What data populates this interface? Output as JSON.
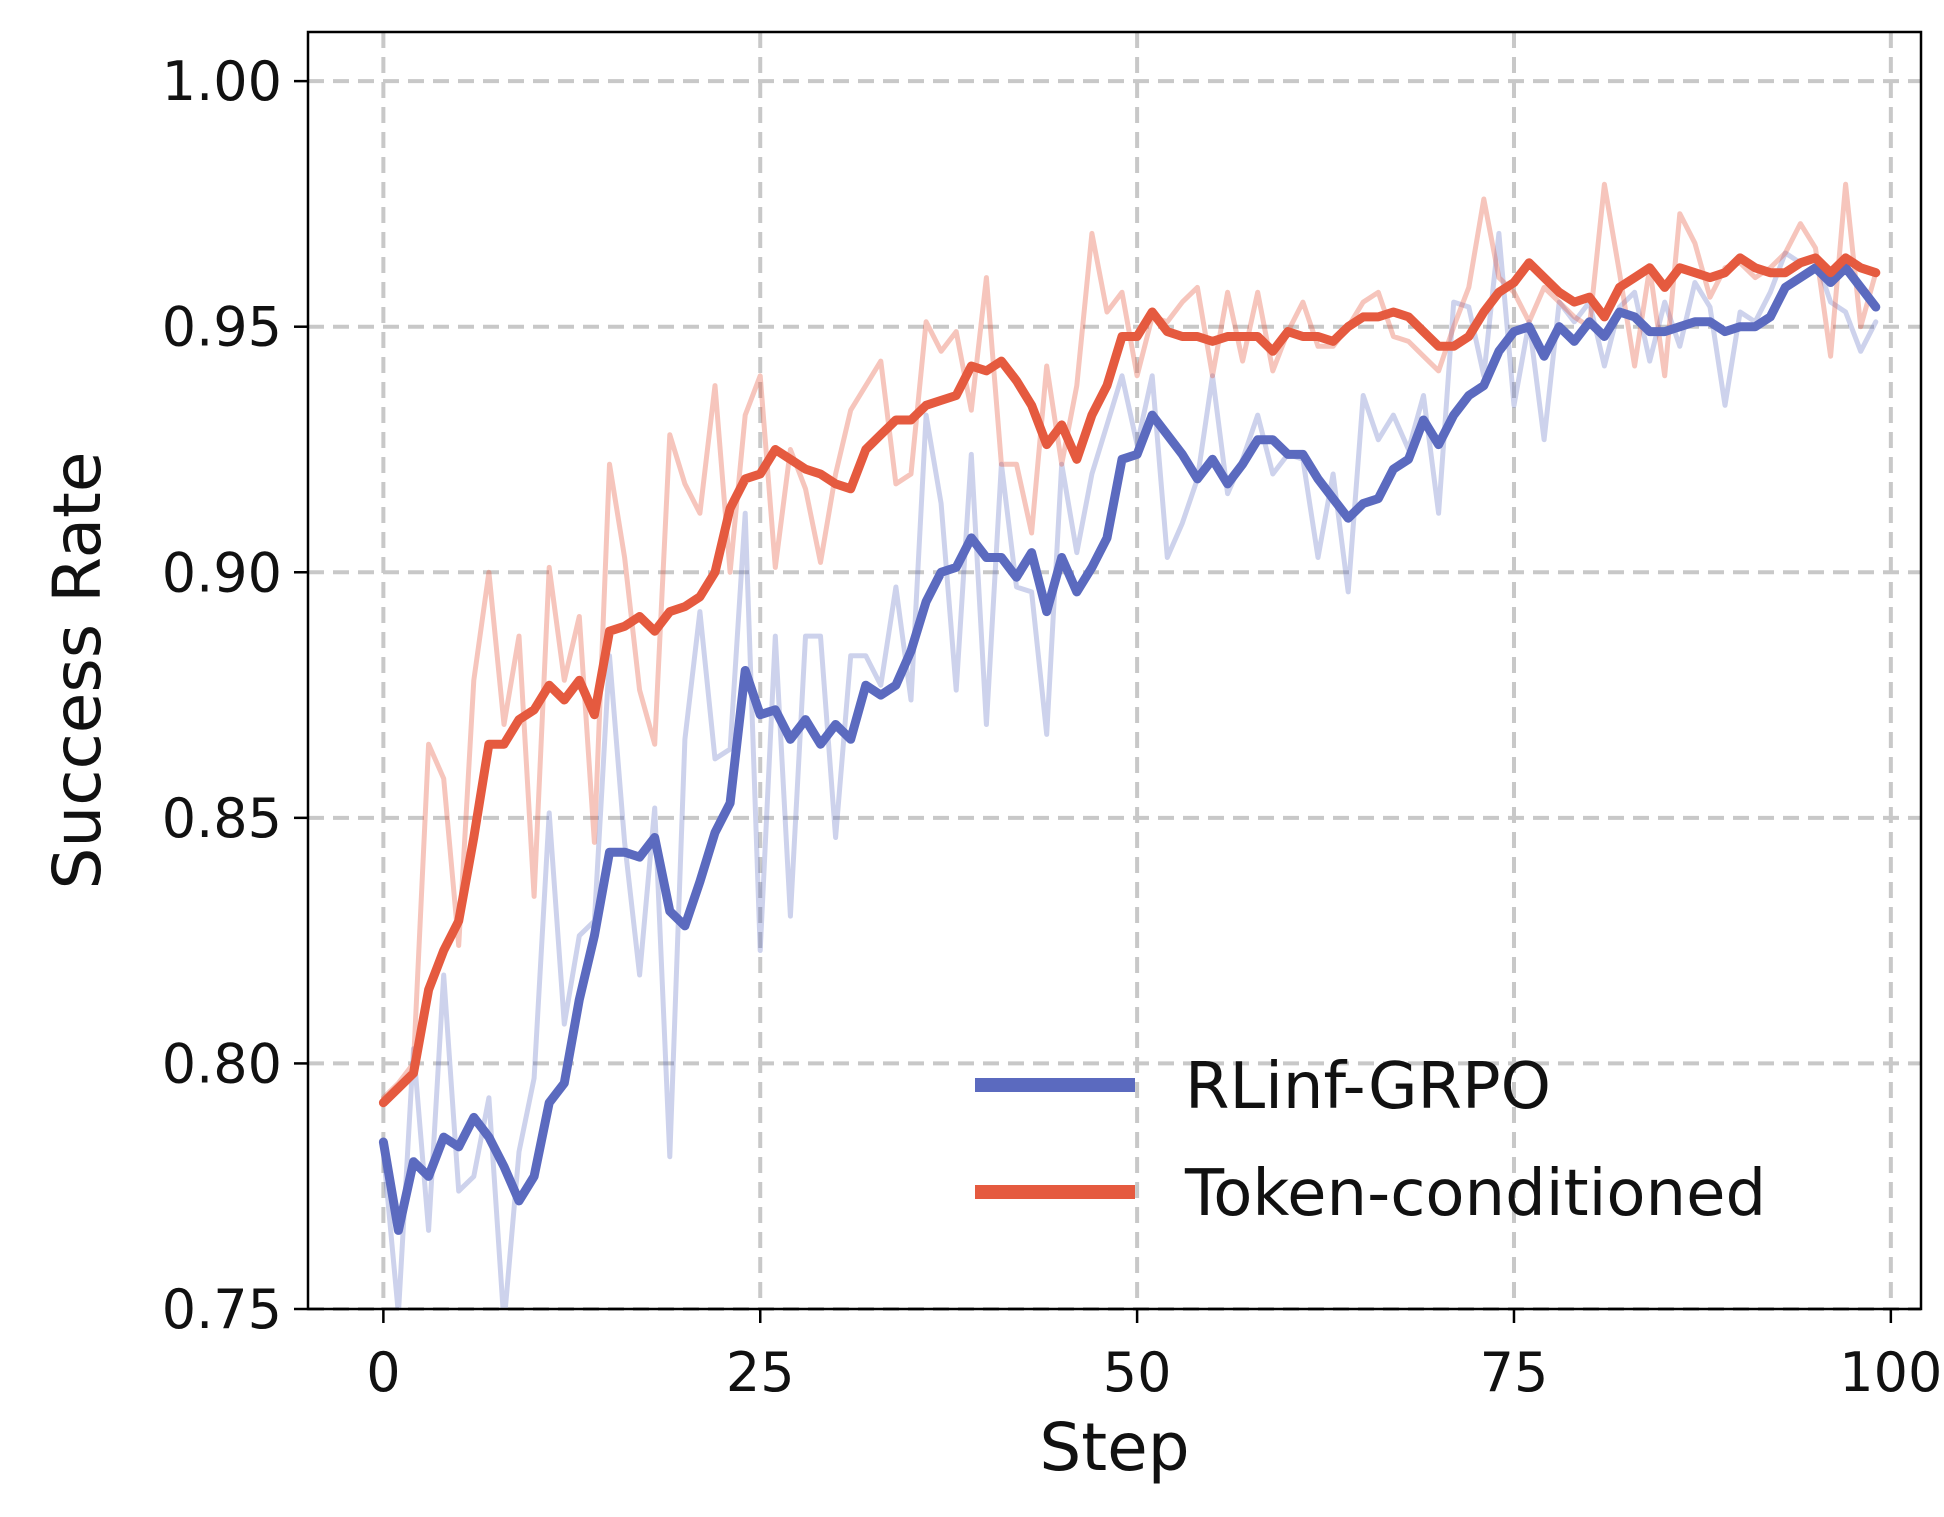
{
  "chart_data": {
    "type": "line",
    "xlabel": "Step",
    "ylabel": "Success Rate",
    "xlim": [
      -5,
      102
    ],
    "ylim": [
      0.75,
      1.01
    ],
    "xticks": [
      0,
      25,
      50,
      75,
      100
    ],
    "yticks": [
      0.75,
      0.8,
      0.85,
      0.9,
      0.95,
      1.0
    ],
    "xtick_labels": [
      "0",
      "25",
      "50",
      "75",
      "100"
    ],
    "ytick_labels": [
      "0.75",
      "0.80",
      "0.85",
      "0.90",
      "0.95",
      "1.00"
    ],
    "grid": true,
    "legend_position": "lower-right",
    "series": [
      {
        "name": "RLinf-GRPO",
        "color": "#5B6ABF",
        "raw_alpha": 0.3,
        "smoothed": [
          0.784,
          0.766,
          0.78,
          0.777,
          0.785,
          0.783,
          0.789,
          0.785,
          0.779,
          0.772,
          0.777,
          0.792,
          0.796,
          0.813,
          0.826,
          0.843,
          0.843,
          0.842,
          0.846,
          0.831,
          0.828,
          0.837,
          0.847,
          0.853,
          0.88,
          0.871,
          0.872,
          0.866,
          0.87,
          0.865,
          0.869,
          0.866,
          0.877,
          0.875,
          0.877,
          0.884,
          0.894,
          0.9,
          0.901,
          0.907,
          0.903,
          0.903,
          0.899,
          0.904,
          0.892,
          0.903,
          0.896,
          0.901,
          0.907,
          0.923,
          0.924,
          0.932,
          0.928,
          0.924,
          0.919,
          0.923,
          0.918,
          0.922,
          0.927,
          0.927,
          0.924,
          0.924,
          0.919,
          0.915,
          0.911,
          0.914,
          0.915,
          0.921,
          0.923,
          0.931,
          0.926,
          0.932,
          0.936,
          0.938,
          0.945,
          0.949,
          0.95,
          0.944,
          0.95,
          0.947,
          0.951,
          0.948,
          0.953,
          0.952,
          0.949,
          0.949,
          0.95,
          0.951,
          0.951,
          0.949,
          0.95,
          0.95,
          0.952,
          0.958,
          0.96,
          0.962,
          0.959,
          0.962,
          0.958,
          0.954
        ],
        "raw": [
          0.782,
          0.749,
          0.803,
          0.766,
          0.818,
          0.774,
          0.777,
          0.793,
          0.747,
          0.782,
          0.797,
          0.851,
          0.808,
          0.826,
          0.829,
          0.883,
          0.845,
          0.818,
          0.852,
          0.781,
          0.866,
          0.892,
          0.862,
          0.864,
          0.912,
          0.823,
          0.887,
          0.83,
          0.887,
          0.887,
          0.846,
          0.883,
          0.883,
          0.877,
          0.897,
          0.874,
          0.932,
          0.914,
          0.876,
          0.924,
          0.869,
          0.922,
          0.897,
          0.896,
          0.867,
          0.922,
          0.904,
          0.92,
          0.93,
          0.94,
          0.926,
          0.94,
          0.903,
          0.91,
          0.919,
          0.94,
          0.916,
          0.923,
          0.932,
          0.92,
          0.924,
          0.923,
          0.903,
          0.92,
          0.896,
          0.936,
          0.927,
          0.932,
          0.925,
          0.936,
          0.912,
          0.955,
          0.954,
          0.94,
          0.969,
          0.934,
          0.951,
          0.927,
          0.955,
          0.951,
          0.955,
          0.942,
          0.954,
          0.957,
          0.943,
          0.955,
          0.946,
          0.959,
          0.954,
          0.934,
          0.953,
          0.951,
          0.957,
          0.965,
          0.963,
          0.964,
          0.955,
          0.953,
          0.945,
          0.951
        ]
      },
      {
        "name": "Token-conditioned",
        "color": "#E55A3F",
        "raw_alpha": 0.35,
        "smoothed": [
          0.792,
          0.795,
          0.798,
          0.815,
          0.823,
          0.829,
          0.846,
          0.865,
          0.865,
          0.87,
          0.872,
          0.877,
          0.874,
          0.878,
          0.871,
          0.888,
          0.889,
          0.891,
          0.888,
          0.892,
          0.893,
          0.895,
          0.9,
          0.913,
          0.919,
          0.92,
          0.925,
          0.923,
          0.921,
          0.92,
          0.918,
          0.917,
          0.925,
          0.928,
          0.931,
          0.931,
          0.934,
          0.935,
          0.936,
          0.942,
          0.941,
          0.943,
          0.939,
          0.934,
          0.926,
          0.93,
          0.923,
          0.932,
          0.938,
          0.948,
          0.948,
          0.953,
          0.949,
          0.948,
          0.948,
          0.947,
          0.948,
          0.948,
          0.948,
          0.945,
          0.949,
          0.948,
          0.948,
          0.947,
          0.95,
          0.952,
          0.952,
          0.953,
          0.952,
          0.949,
          0.946,
          0.946,
          0.948,
          0.953,
          0.957,
          0.959,
          0.963,
          0.96,
          0.957,
          0.955,
          0.956,
          0.952,
          0.958,
          0.96,
          0.962,
          0.958,
          0.962,
          0.961,
          0.96,
          0.961,
          0.964,
          0.962,
          0.961,
          0.961,
          0.963,
          0.964,
          0.961,
          0.964,
          0.962,
          0.961
        ],
        "raw": [
          0.793,
          0.796,
          0.8,
          0.865,
          0.858,
          0.824,
          0.878,
          0.9,
          0.869,
          0.887,
          0.834,
          0.901,
          0.878,
          0.891,
          0.845,
          0.922,
          0.903,
          0.876,
          0.865,
          0.928,
          0.918,
          0.912,
          0.938,
          0.9,
          0.932,
          0.94,
          0.901,
          0.925,
          0.917,
          0.902,
          0.92,
          0.933,
          0.938,
          0.943,
          0.918,
          0.92,
          0.951,
          0.945,
          0.949,
          0.933,
          0.96,
          0.922,
          0.922,
          0.908,
          0.942,
          0.922,
          0.938,
          0.969,
          0.953,
          0.957,
          0.94,
          0.952,
          0.951,
          0.955,
          0.958,
          0.94,
          0.957,
          0.943,
          0.957,
          0.941,
          0.949,
          0.955,
          0.946,
          0.946,
          0.95,
          0.955,
          0.957,
          0.948,
          0.947,
          0.944,
          0.941,
          0.95,
          0.958,
          0.976,
          0.96,
          0.957,
          0.951,
          0.958,
          0.955,
          0.952,
          0.95,
          0.979,
          0.961,
          0.942,
          0.962,
          0.94,
          0.973,
          0.967,
          0.956,
          0.962,
          0.963,
          0.96,
          0.962,
          0.965,
          0.971,
          0.966,
          0.944,
          0.979,
          0.95,
          0.961
        ]
      }
    ]
  }
}
